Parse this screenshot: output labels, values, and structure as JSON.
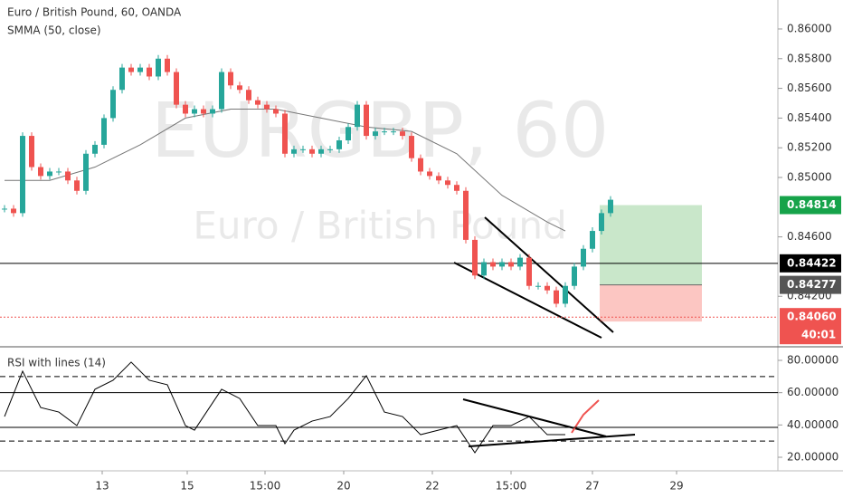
{
  "chart_data": {
    "type": "candlestick",
    "title": "Euro / British Pound, 60, OANDA",
    "indicator": "SMMA (50, close)",
    "watermark": "EURGBP, 60",
    "watermark_sub": "Euro / British Pound",
    "up_color": "#26a69a",
    "down_color": "#ef5350",
    "xlim": [
      -0.5,
      85.5
    ],
    "xticks": [
      {
        "value": 10.8,
        "label": "13"
      },
      {
        "value": 20.2,
        "label": "15"
      },
      {
        "value": 28.8,
        "label": "15:00"
      },
      {
        "value": 37.5,
        "label": "20"
      },
      {
        "value": 47.3,
        "label": "22"
      },
      {
        "value": 56,
        "label": "15:00"
      },
      {
        "value": 65,
        "label": "27"
      },
      {
        "value": 74.3,
        "label": "29"
      }
    ],
    "ylim": [
      0.8386,
      0.86195
    ],
    "yticks": [
      {
        "value": 0.86,
        "label": "0.86000"
      },
      {
        "value": 0.858,
        "label": "0.85800"
      },
      {
        "value": 0.856,
        "label": "0.85600"
      },
      {
        "value": 0.854,
        "label": "0.85400"
      },
      {
        "value": 0.852,
        "label": "0.85200"
      },
      {
        "value": 0.85,
        "label": "0.85000"
      },
      {
        "value": 0.846,
        "label": "0.84600"
      },
      {
        "value": 0.842,
        "label": "0.84200"
      }
    ],
    "close": [
      0.8479,
      0.8476,
      0.8528,
      0.8507,
      0.8501,
      0.8504,
      0.8504,
      0.8498,
      0.8491,
      0.8516,
      0.8522,
      0.854,
      0.8559,
      0.8574,
      0.8571,
      0.8574,
      0.8568,
      0.858,
      0.8571,
      0.8549,
      0.8543,
      0.8546,
      0.8543,
      0.8546,
      0.8571,
      0.8562,
      0.8559,
      0.8552,
      0.8549,
      0.8546,
      0.8543,
      0.8516,
      0.8519,
      0.8519,
      0.8516,
      0.8519,
      0.8519,
      0.8525,
      0.8534,
      0.8549,
      0.8528,
      0.8531,
      0.8531,
      0.8531,
      0.8528,
      0.8513,
      0.8504,
      0.8501,
      0.8498,
      0.8495,
      0.8491,
      0.8458,
      0.8434,
      0.8443,
      0.844,
      0.8443,
      0.844,
      0.8446,
      0.8427,
      0.8427,
      0.8424,
      0.8415,
      0.8427,
      0.844,
      0.8452,
      0.8464,
      0.8476,
      0.8485
    ],
    "smma": {
      "color": "#777777",
      "x": [
        0,
        5,
        10,
        15,
        20,
        25,
        30,
        35,
        40,
        45,
        50,
        55,
        60,
        62
      ],
      "values": [
        0.8498,
        0.8498,
        0.8507,
        0.8522,
        0.854,
        0.8546,
        0.8546,
        0.854,
        0.8534,
        0.8531,
        0.8516,
        0.8488,
        0.847,
        0.8464
      ]
    },
    "levels": [
      {
        "value": 0.84422,
        "label": "0.84422",
        "color": "#000000",
        "style": "solid"
      },
      {
        "value": 0.8406,
        "label": "0.84060",
        "color": "#ef5350",
        "style": "dotted",
        "countdown": "40:01"
      }
    ],
    "position": {
      "start": 65.8,
      "end": 77.1,
      "entry": {
        "value": 0.84277,
        "label": "0.84277"
      },
      "target": {
        "value": 0.84814,
        "label": "0.84814"
      },
      "stop": 0.8403,
      "profit_color": "#4caf50",
      "loss_color": "#f44336"
    },
    "rsi": {
      "title": "RSI with lines (14)",
      "color": "#000000",
      "ylim": [
        11.6,
        88.4
      ],
      "yticks": [
        {
          "value": 80,
          "label": "80.00000"
        },
        {
          "value": 60,
          "label": "60.00000"
        },
        {
          "value": 40,
          "label": "40.00000"
        },
        {
          "value": 20,
          "label": "20.00000"
        }
      ],
      "x": [
        0,
        2,
        4,
        6,
        8,
        10,
        12,
        14,
        16,
        18,
        20,
        21,
        24,
        26,
        28,
        30,
        31,
        32,
        34,
        36,
        38,
        40,
        42,
        44,
        46,
        48,
        50,
        52,
        54,
        56,
        58,
        60,
        62
      ],
      "values": [
        45.2,
        73.3,
        50.8,
        48,
        39.6,
        62.1,
        67.7,
        78.9,
        67.7,
        64.9,
        39.6,
        36.8,
        62.1,
        56.4,
        39.6,
        39.6,
        28.4,
        36.8,
        42.4,
        45.2,
        56.4,
        70.5,
        48,
        45.2,
        34,
        36.8,
        39.6,
        22.8,
        39.6,
        39.6,
        45.2,
        34,
        34
      ],
      "levels": [
        {
          "value": 70,
          "style": "dashed"
        },
        {
          "value": 60,
          "style": "solid"
        },
        {
          "value": 38.5,
          "style": "solid"
        },
        {
          "value": 30,
          "style": "dashed"
        }
      ]
    }
  }
}
